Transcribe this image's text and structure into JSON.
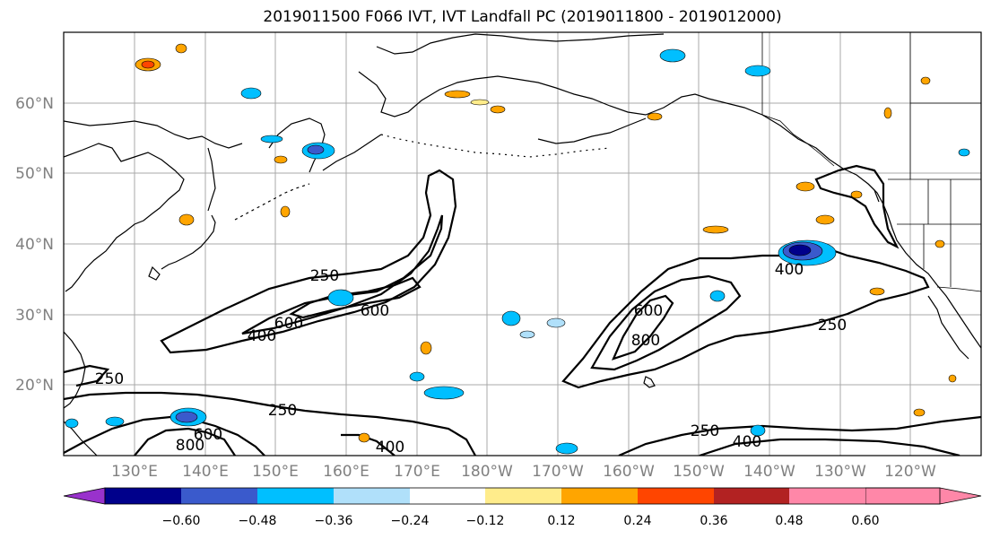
{
  "title": "2019011500 F066 IVT, IVT Landfall PC (2019011800 - 2019012000)",
  "lat_labels": [
    "60°N",
    "50°N",
    "40°N",
    "30°N",
    "20°N"
  ],
  "lon_labels": [
    "130°E",
    "140°E",
    "150°E",
    "160°E",
    "170°E",
    "180°W",
    "170°W",
    "160°W",
    "150°W",
    "140°W",
    "130°W",
    "120°W"
  ],
  "map": {
    "lon_range": [
      120,
      250
    ],
    "lat_range": [
      10,
      70
    ],
    "graticule_step_deg": 10
  },
  "contour_labels": [
    "250",
    "400",
    "600",
    "600",
    "250",
    "800",
    "600",
    "400",
    "250",
    "400",
    "800",
    "600",
    "250",
    "400",
    "250",
    "250",
    "400",
    "600",
    "800"
  ],
  "colorbar": {
    "colors": [
      "#9932cc",
      "#00008b",
      "#3a5acc",
      "#00bfff",
      "#b0e0fa",
      "#ffffff",
      "#ffec8b",
      "#ffa500",
      "#ff4500",
      "#b22222",
      "#ff87a8"
    ],
    "ticks": [
      "−0.60",
      "−0.48",
      "−0.36",
      "−0.24",
      "−0.12",
      "0.12",
      "0.24",
      "0.36",
      "0.48",
      "0.60"
    ]
  }
}
